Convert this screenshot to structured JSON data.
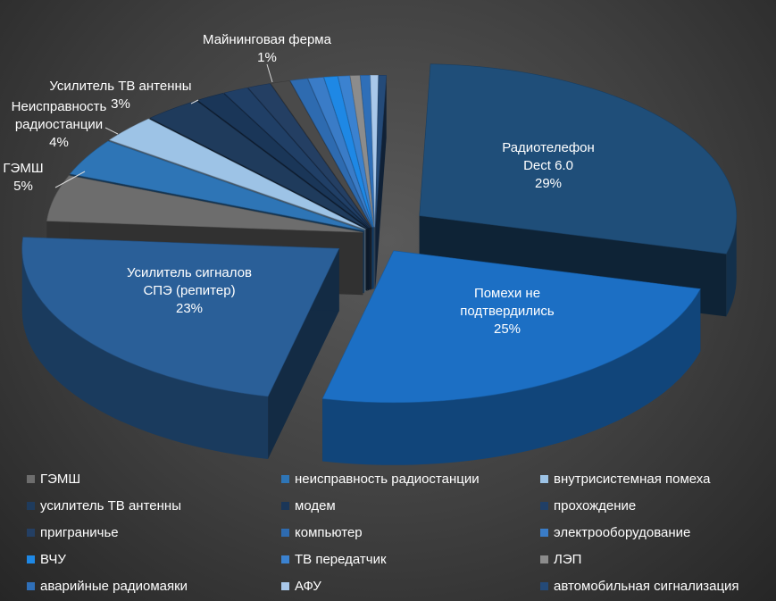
{
  "chart_data": {
    "type": "pie",
    "slices": [
      {
        "label": "Радиотелефон Dect 6.0",
        "value": 29,
        "display": "29%",
        "color": "#1f4e79",
        "lines": [
          "Радиотелефон",
          "Dect 6.0",
          "29%"
        ]
      },
      {
        "label": "Помехи не подтвердились",
        "value": 25,
        "display": "25%",
        "color": "#1c6fc4",
        "lines": [
          "Помехи не",
          "подтвердились",
          "25%"
        ]
      },
      {
        "label": "Усилитель сигналов СПЭ (репитер)",
        "value": 23,
        "display": "23%",
        "color": "#2a5f98",
        "lines": [
          "Усилитель сигналов",
          "СПЭ (репитер)",
          "23%"
        ]
      },
      {
        "label": "ГЭМШ",
        "value": 5,
        "display": "5%",
        "color": "#6d6d6d",
        "lines": [
          "ГЭМШ",
          "5%"
        ]
      },
      {
        "label": "неисправность радиостанции",
        "value": 4,
        "display": "4%",
        "color": "#2e75b6",
        "lines": [
          "Неисправность",
          "радиостанции",
          "4%"
        ]
      },
      {
        "label": "внутрисистемная помеха",
        "value": 3,
        "display": "",
        "color": "#9dc3e6",
        "lines": []
      },
      {
        "label": "усилитель ТВ антенны",
        "value": 3,
        "display": "3%",
        "color": "#1f3b5c",
        "lines": [
          "Усилитель ТВ антенны",
          "3%"
        ]
      },
      {
        "label": "модем",
        "value": 1.5,
        "display": "",
        "color": "#1a3658",
        "lines": []
      },
      {
        "label": "прохождение",
        "value": 1.3,
        "display": "",
        "color": "#203f66",
        "lines": []
      },
      {
        "label": "приграничье",
        "value": 1.2,
        "display": "",
        "color": "#243f63",
        "lines": []
      },
      {
        "label": "Майнинговая ферма",
        "value": 1,
        "display": "1%",
        "color": "#4a4a4a",
        "lines": [
          "Майнинговая ферма",
          "1%"
        ]
      },
      {
        "label": "компьютер",
        "value": 0.9,
        "display": "",
        "color": "#2e6bb0",
        "lines": []
      },
      {
        "label": "электрооборудование",
        "value": 0.8,
        "display": "",
        "color": "#3a7cc7",
        "lines": []
      },
      {
        "label": "ВЧУ",
        "value": 0.7,
        "display": "",
        "color": "#1e88e5",
        "lines": []
      },
      {
        "label": "ТВ передатчик",
        "value": 0.6,
        "display": "",
        "color": "#3b82d0",
        "lines": []
      },
      {
        "label": "ЛЭП",
        "value": 0.5,
        "display": "",
        "color": "#8c8c8c",
        "lines": []
      },
      {
        "label": "аварийные радиомаяки",
        "value": 0.5,
        "display": "",
        "color": "#2f6fb8",
        "lines": []
      },
      {
        "label": "АФУ",
        "value": 0.4,
        "display": "",
        "color": "#a9c8ea",
        "lines": []
      },
      {
        "label": "автомобильная сигнализация",
        "value": 0.4,
        "display": "",
        "color": "#244a78",
        "lines": []
      }
    ],
    "legend": [
      {
        "label": "ГЭМШ",
        "color": "#6d6d6d"
      },
      {
        "label": "неисправность радиостанции",
        "color": "#2e75b6"
      },
      {
        "label": "внутрисистемная помеха",
        "color": "#9dc3e6"
      },
      {
        "label": "усилитель ТВ антенны",
        "color": "#1f3b5c"
      },
      {
        "label": "модем",
        "color": "#1a3658"
      },
      {
        "label": "прохождение",
        "color": "#203f66"
      },
      {
        "label": "приграничье",
        "color": "#243f63"
      },
      {
        "label": "компьютер",
        "color": "#2e6bb0"
      },
      {
        "label": "электрооборудование",
        "color": "#3a7cc7"
      },
      {
        "label": "ВЧУ",
        "color": "#1e88e5"
      },
      {
        "label": "ТВ передатчик",
        "color": "#3b82d0"
      },
      {
        "label": "ЛЭП",
        "color": "#8c8c8c"
      },
      {
        "label": "аварийные радиомаяки",
        "color": "#2f6fb8"
      },
      {
        "label": "АФУ",
        "color": "#a9c8ea"
      },
      {
        "label": "автомобильная сигнализация",
        "color": "#244a78"
      }
    ],
    "legend_position": "bottom",
    "style": "3d-exploded"
  }
}
